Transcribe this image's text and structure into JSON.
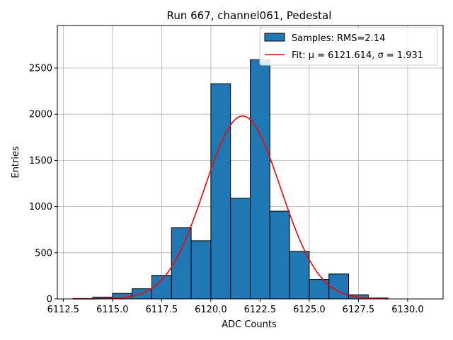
{
  "chart_data": {
    "type": "bar",
    "title": "Run 667, channel061, Pedestal",
    "xlabel": "ADC Counts",
    "ylabel": "Entries",
    "xlim": [
      6112.2,
      6131.8
    ],
    "ylim": [
      0,
      2960
    ],
    "xticks": [
      6112.5,
      6115.0,
      6117.5,
      6120.0,
      6122.5,
      6125.0,
      6127.5,
      6130.0
    ],
    "xtick_labels": [
      "6112.5",
      "6115.0",
      "6117.5",
      "6120.0",
      "6122.5",
      "6125.0",
      "6127.5",
      "6130.0"
    ],
    "yticks": [
      0,
      500,
      1000,
      1500,
      2000,
      2500
    ],
    "ytick_labels": [
      "0",
      "500",
      "1000",
      "1500",
      "2000",
      "2500"
    ],
    "grid": true,
    "legend_position": "top-right",
    "histogram": {
      "name": "Samples: RMS=2.14",
      "color": "#1f77b4",
      "edgecolor": "#000000",
      "bin_edges": [
        6113,
        6114,
        6115,
        6116,
        6117,
        6118,
        6119,
        6120,
        6121,
        6122,
        6123,
        6124,
        6125,
        6126,
        6127,
        6128,
        6129,
        6130
      ],
      "counts": [
        5,
        20,
        60,
        110,
        255,
        770,
        630,
        2330,
        1090,
        2590,
        950,
        515,
        210,
        270,
        45,
        10,
        0
      ]
    },
    "fit": {
      "name": "Fit: μ = 6121.614, σ = 1.931",
      "color": "#ff0000",
      "mu": 6121.614,
      "sigma": 1.931,
      "amplitude": 1980,
      "x_range": [
        6113,
        6129
      ]
    }
  }
}
